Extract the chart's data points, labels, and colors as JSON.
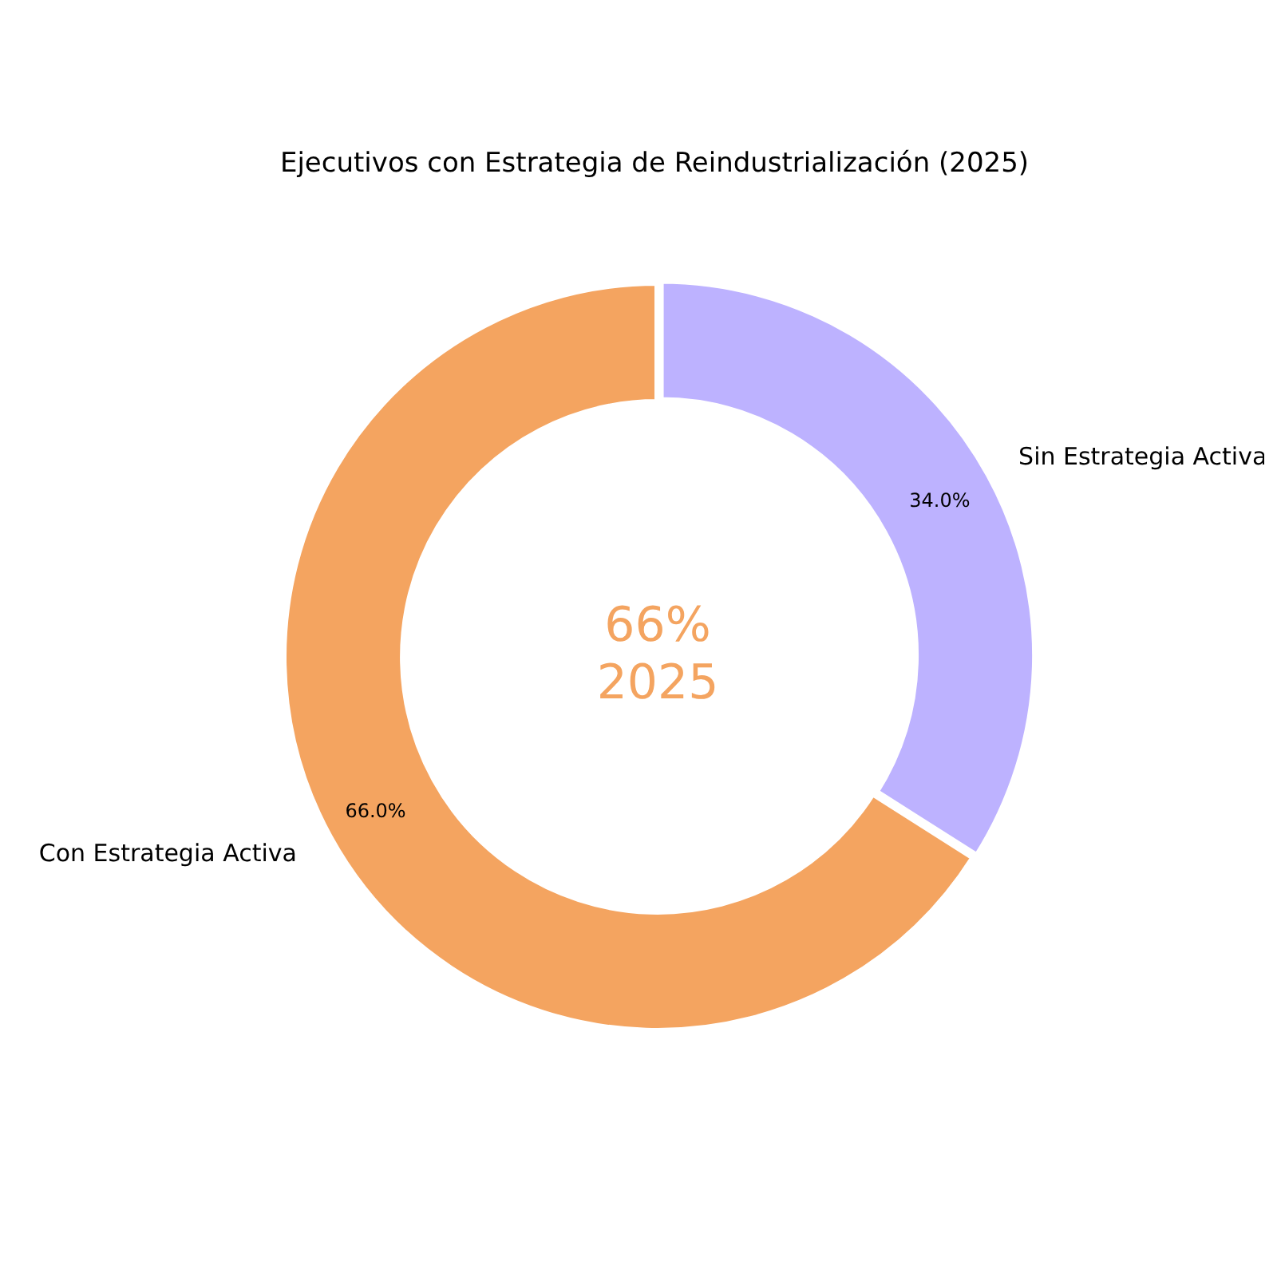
{
  "chart_data": {
    "type": "donut",
    "title": "Ejecutivos con Estrategia de Reindustrialización (2025)",
    "categories": [
      "Sin Estrategia Activa",
      "Con Estrategia Activa"
    ],
    "values": [
      34,
      66
    ],
    "colors": [
      "#bdb2ff",
      "#f4a460"
    ],
    "value_labels": [
      "34.0%",
      "66.0%"
    ],
    "annotations": [
      "66%",
      "2025"
    ],
    "legend": false
  }
}
